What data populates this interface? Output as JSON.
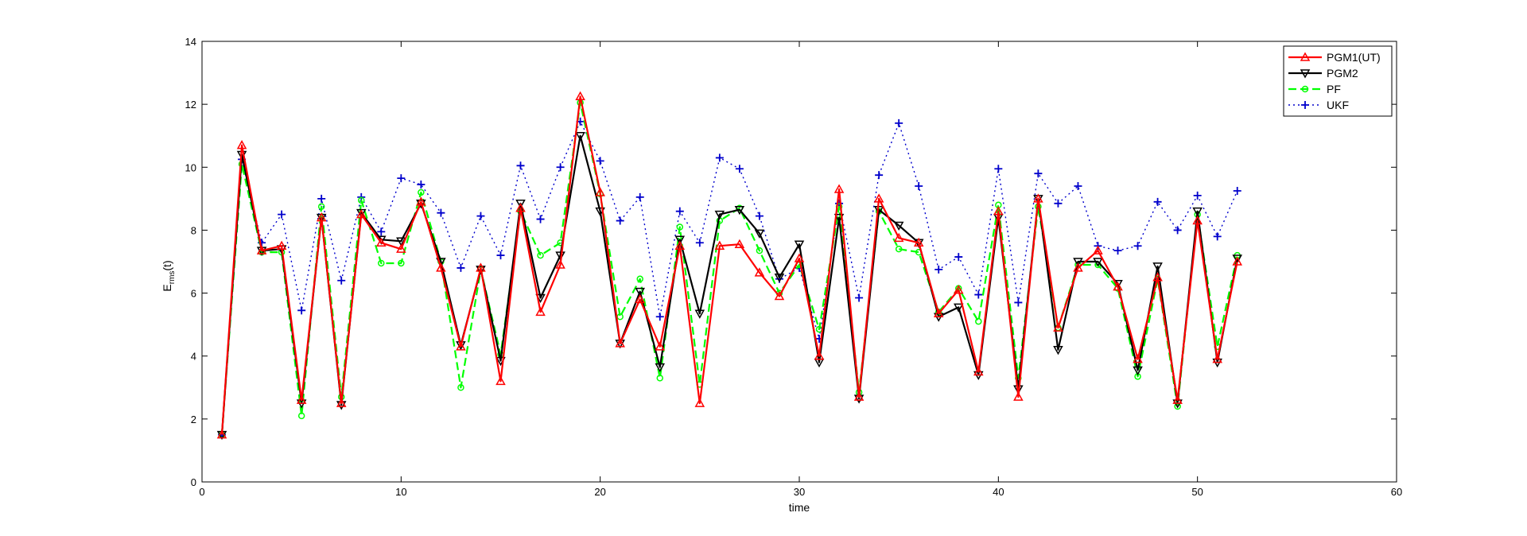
{
  "chart_data": {
    "type": "line",
    "title": "",
    "xlabel": "time",
    "ylabel": "E",
    "ylabel_sub": "rms",
    "ylabel_suffix": "(t)",
    "xlim": [
      0,
      60
    ],
    "ylim": [
      0,
      14
    ],
    "xticks": [
      0,
      10,
      20,
      30,
      40,
      50,
      60
    ],
    "yticks": [
      0,
      2,
      4,
      6,
      8,
      10,
      12,
      14
    ],
    "grid": false,
    "legend_position": "top-right",
    "x": [
      1,
      2,
      3,
      4,
      5,
      6,
      7,
      8,
      9,
      10,
      11,
      12,
      13,
      14,
      15,
      16,
      17,
      18,
      19,
      20,
      21,
      22,
      23,
      24,
      25,
      26,
      27,
      28,
      29,
      30,
      31,
      32,
      33,
      34,
      35,
      36,
      37,
      38,
      39,
      40,
      41,
      42,
      43,
      44,
      45,
      46,
      47,
      48,
      49,
      50,
      51,
      52
    ],
    "series": [
      {
        "name": "PGM1(UT)",
        "color": "#ff0000",
        "dash": "solid",
        "marker": "triangle-up",
        "values": [
          1.5,
          10.7,
          7.35,
          7.5,
          2.6,
          8.4,
          2.5,
          8.5,
          7.6,
          7.4,
          8.9,
          6.8,
          4.3,
          6.8,
          3.2,
          8.7,
          5.4,
          6.9,
          12.25,
          9.2,
          4.4,
          5.8,
          4.3,
          7.5,
          2.5,
          7.5,
          7.55,
          6.65,
          5.9,
          7.1,
          4.0,
          9.3,
          2.7,
          9.0,
          7.75,
          7.6,
          5.35,
          6.1,
          3.5,
          8.6,
          2.7,
          9.0,
          4.9,
          6.8,
          7.35,
          6.2,
          3.9,
          6.5,
          2.6,
          8.3,
          3.9,
          7.0
        ]
      },
      {
        "name": "PGM2",
        "color": "#000000",
        "dash": "solid",
        "marker": "triangle-down",
        "values": [
          1.5,
          10.4,
          7.35,
          7.4,
          2.5,
          8.4,
          2.45,
          8.55,
          7.7,
          7.65,
          8.85,
          7.0,
          4.35,
          6.75,
          3.85,
          8.85,
          5.85,
          7.2,
          11.0,
          8.6,
          4.4,
          6.05,
          3.65,
          7.7,
          5.35,
          8.5,
          8.65,
          7.9,
          6.5,
          7.55,
          3.8,
          8.4,
          2.65,
          8.65,
          8.15,
          7.6,
          5.25,
          5.55,
          3.4,
          8.4,
          2.95,
          9.0,
          4.2,
          7.0,
          7.0,
          6.3,
          3.55,
          6.85,
          2.5,
          8.6,
          3.8,
          7.1
        ]
      },
      {
        "name": "PF",
        "color": "#00ff00",
        "dash": "dashed",
        "marker": "circle",
        "values": [
          1.5,
          10.1,
          7.3,
          7.3,
          2.1,
          8.75,
          2.7,
          8.95,
          6.95,
          6.95,
          9.2,
          7.0,
          3.0,
          6.75,
          4.05,
          8.6,
          7.2,
          7.6,
          12.05,
          9.15,
          5.25,
          6.45,
          3.3,
          8.1,
          3.1,
          8.3,
          8.7,
          7.35,
          6.0,
          6.9,
          4.85,
          8.75,
          2.85,
          8.6,
          7.4,
          7.3,
          5.4,
          6.15,
          5.1,
          8.8,
          3.3,
          8.75,
          4.9,
          6.9,
          6.9,
          6.15,
          3.35,
          6.45,
          2.4,
          8.5,
          4.3,
          7.2
        ]
      },
      {
        "name": "UKF",
        "color": "#0000cc",
        "dash": "dotted",
        "marker": "plus",
        "values": [
          1.5,
          10.25,
          7.6,
          8.5,
          5.45,
          9.0,
          6.4,
          9.05,
          7.95,
          9.65,
          9.45,
          8.55,
          6.8,
          8.45,
          7.2,
          10.05,
          8.35,
          10.0,
          11.45,
          10.2,
          8.3,
          9.05,
          5.25,
          8.6,
          7.6,
          10.3,
          9.95,
          8.45,
          6.45,
          6.8,
          4.55,
          8.85,
          5.85,
          9.75,
          11.4,
          9.4,
          6.75,
          7.15,
          5.95,
          9.95,
          5.7,
          9.8,
          8.85,
          9.4,
          7.5,
          7.35,
          7.5,
          8.9,
          8.0,
          9.1,
          7.8,
          9.25
        ]
      }
    ]
  }
}
